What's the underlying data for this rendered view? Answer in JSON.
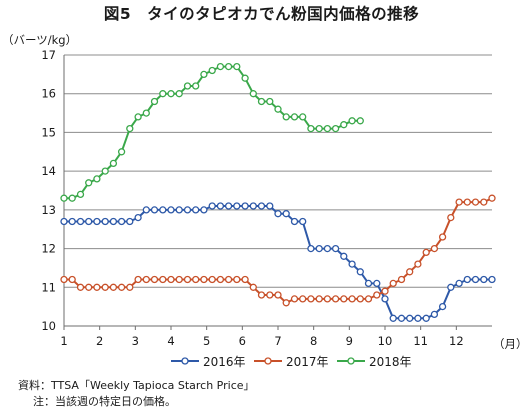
{
  "title": "図5　タイのタピオカでん粉国内価格の推移",
  "unit_label": "（バーツ/kg）",
  "month_unit_label": "（月）",
  "notes": {
    "source": "資料：TTSA「Weekly Tapioca Starch Price」",
    "note": "注：当該週の特定日の価格。"
  },
  "chart_data": {
    "type": "line",
    "x_tick_labels": [
      "1",
      "2",
      "3",
      "4",
      "5",
      "6",
      "7",
      "8",
      "9",
      "10",
      "11",
      "12"
    ],
    "xlim": [
      1,
      13
    ],
    "ylim": [
      10,
      17
    ],
    "y_ticks": [
      10,
      11,
      12,
      13,
      14,
      15,
      16,
      17
    ],
    "grid": "horizontal",
    "legend_position": "bottom",
    "series": [
      {
        "name": "2016年",
        "color": "#2e59a8",
        "values": [
          12.7,
          12.7,
          12.7,
          12.7,
          12.7,
          12.7,
          12.7,
          12.7,
          12.7,
          12.8,
          13.0,
          13.0,
          13.0,
          13.0,
          13.0,
          13.0,
          13.0,
          13.0,
          13.1,
          13.1,
          13.1,
          13.1,
          13.1,
          13.1,
          13.1,
          13.1,
          12.9,
          12.9,
          12.7,
          12.7,
          12.0,
          12.0,
          12.0,
          12.0,
          11.8,
          11.6,
          11.4,
          11.1,
          11.1,
          10.7,
          10.2,
          10.2,
          10.2,
          10.2,
          10.2,
          10.3,
          10.5,
          11.0,
          11.1,
          11.2,
          11.2,
          11.2,
          11.2
        ]
      },
      {
        "name": "2017年",
        "color": "#c8512a",
        "values": [
          11.2,
          11.2,
          11.0,
          11.0,
          11.0,
          11.0,
          11.0,
          11.0,
          11.0,
          11.2,
          11.2,
          11.2,
          11.2,
          11.2,
          11.2,
          11.2,
          11.2,
          11.2,
          11.2,
          11.2,
          11.2,
          11.2,
          11.2,
          11.0,
          10.8,
          10.8,
          10.8,
          10.6,
          10.7,
          10.7,
          10.7,
          10.7,
          10.7,
          10.7,
          10.7,
          10.7,
          10.7,
          10.7,
          10.8,
          10.9,
          11.1,
          11.2,
          11.4,
          11.6,
          11.9,
          12.0,
          12.3,
          12.8,
          13.2,
          13.2,
          13.2,
          13.2,
          13.3
        ]
      },
      {
        "name": "2018年",
        "color": "#3aa84a",
        "values": [
          13.3,
          13.3,
          13.4,
          13.7,
          13.8,
          14.0,
          14.2,
          14.5,
          15.1,
          15.4,
          15.5,
          15.8,
          16.0,
          16.0,
          16.0,
          16.2,
          16.2,
          16.5,
          16.6,
          16.7,
          16.7,
          16.7,
          16.4,
          16.0,
          15.8,
          15.8,
          15.6,
          15.4,
          15.4,
          15.4,
          15.1,
          15.1,
          15.1,
          15.1,
          15.2,
          15.3,
          15.3
        ]
      }
    ]
  }
}
